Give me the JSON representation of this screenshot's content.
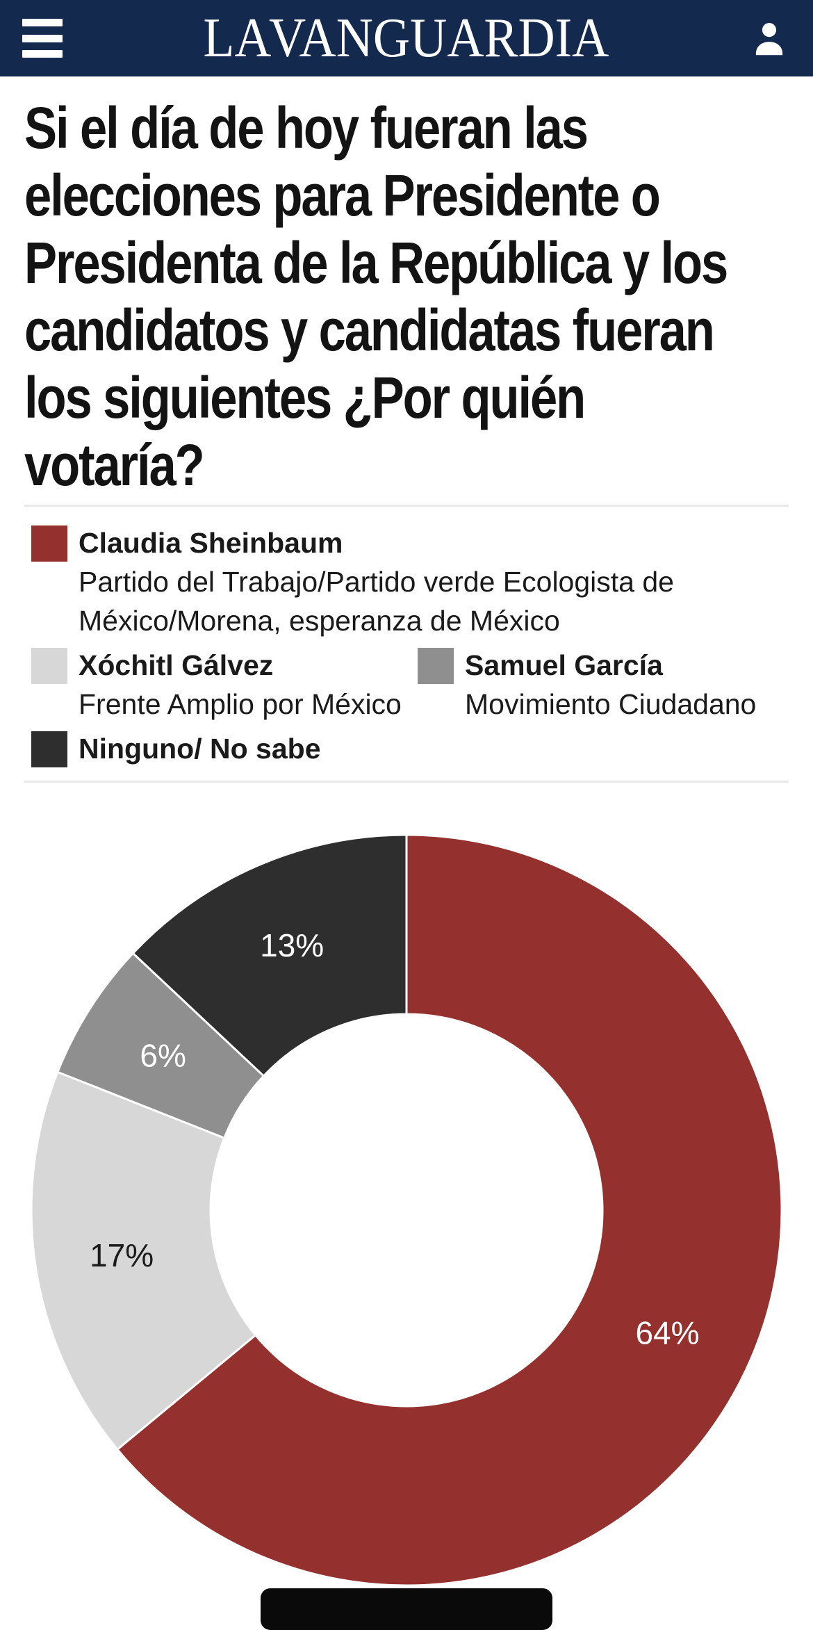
{
  "header": {
    "brand": "LA VANGUARDIA",
    "background": "#14294e",
    "foreground": "#ffffff"
  },
  "headline": {
    "lines": [
      "Si el día de hoy fueran las",
      "elecciones para Presidente o",
      "Presidenta de la República y los",
      "candidatos y candidatas fueran",
      "los siguientes ¿Por quién",
      "votaría?"
    ],
    "text": "Si el día de hoy fueran las elecciones para Presidente o Presidenta de la República y los candidatos y candidatas fueran los siguientes ¿Por quién votaría?"
  },
  "legend": {
    "items": [
      {
        "label": "Claudia Sheinbaum",
        "description": "Partido del Trabajo/Partido verde Ecologista de México/Morena, esperanza de México",
        "color": "#94302e"
      },
      {
        "label": "Xóchitl Gálvez",
        "description": "Frente Amplio por México",
        "color": "#d7d7d7"
      },
      {
        "label": "Samuel García",
        "description": "Movimiento Ciudadano",
        "color": "#8f8f8f"
      },
      {
        "label": "Ninguno/ No sabe",
        "description": "",
        "color": "#2e2e2e"
      }
    ]
  },
  "chart_data": {
    "type": "pie",
    "subtype": "donut",
    "title": "Si el día de hoy fueran las elecciones para Presidente o Presidenta de la República y los candidatos y candidatas fueran los siguientes ¿Por quién votaría?",
    "categories": [
      "Claudia Sheinbaum",
      "Xóchitl Gálvez",
      "Samuel García",
      "Ninguno/ No sabe"
    ],
    "values": [
      64,
      17,
      6,
      13
    ],
    "unit": "%",
    "data_labels": [
      "64%",
      "17%",
      "6%",
      "13%"
    ],
    "colors": [
      "#94302e",
      "#d7d7d7",
      "#8f8f8f",
      "#2e2e2e"
    ],
    "label_text_colors": [
      "#ffffff",
      "#1b1b1b",
      "#ffffff",
      "#ffffff"
    ],
    "start_angle_deg": -90,
    "direction": "clockwise",
    "legend_position": "top"
  }
}
